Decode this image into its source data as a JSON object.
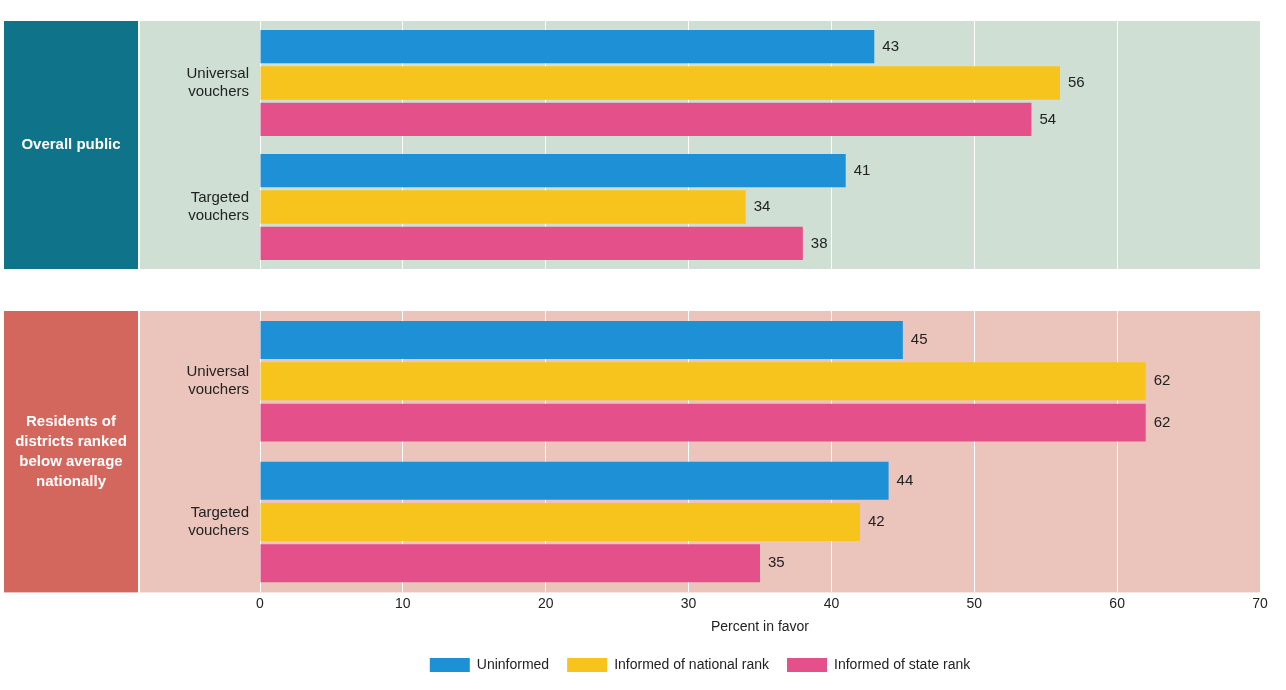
{
  "chart_data": [
    {
      "type": "bar",
      "orientation": "horizontal",
      "title": "Overall public",
      "categories": [
        "Universal vouchers",
        "Targeted vouchers"
      ],
      "series": [
        {
          "name": "Uninformed",
          "color": "#1e90d6",
          "values": [
            43,
            41
          ]
        },
        {
          "name": "Informed of national rank",
          "color": "#f6c41c",
          "values": [
            56,
            34
          ]
        },
        {
          "name": "Informed of state rank",
          "color": "#e4508a",
          "values": [
            54,
            38
          ]
        }
      ],
      "xlim": [
        0,
        70
      ],
      "xticks": [
        0,
        10,
        20,
        30,
        40,
        50,
        60,
        70
      ],
      "grid": true,
      "data_labels": true,
      "tick_labels": "y"
    },
    {
      "type": "bar",
      "orientation": "horizontal",
      "title": "Residents of districts ranked below average nationally",
      "categories": [
        "Universal vouchers",
        "Targeted vouchers"
      ],
      "series": [
        {
          "name": "Uninformed",
          "color": "#1e90d6",
          "values": [
            45,
            44
          ]
        },
        {
          "name": "Informed of national rank",
          "color": "#f6c41c",
          "values": [
            62,
            42
          ]
        },
        {
          "name": "Informed of state rank",
          "color": "#e4508a",
          "values": [
            62,
            35
          ]
        }
      ],
      "xlim": [
        0,
        70
      ],
      "xticks": [
        0,
        10,
        20,
        30,
        40,
        50,
        60,
        70
      ],
      "xlabel": "Percent in favor",
      "grid": true,
      "data_labels": true,
      "legend": "bottom"
    }
  ]
}
